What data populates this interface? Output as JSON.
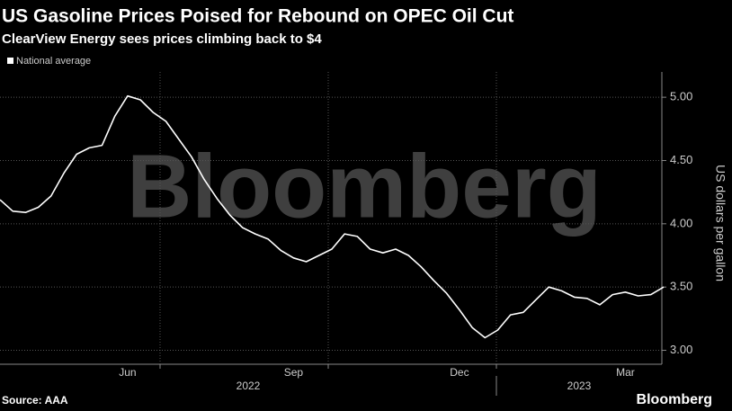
{
  "chart_data": {
    "type": "line",
    "title": "US Gasoline Prices Poised for Rebound on OPEC Oil Cut",
    "subtitle": "ClearView Energy sees prices climbing back to $4",
    "y_label": "US dollars per gallon",
    "source": "Source: AAA",
    "watermark": "Bloomberg",
    "brand": "Bloomberg",
    "year_labels": [
      "2022",
      "2023"
    ],
    "categories": [
      null,
      null,
      null,
      null,
      null,
      null,
      null,
      null,
      null,
      null,
      "Jun",
      null,
      null,
      null,
      null,
      null,
      null,
      null,
      null,
      null,
      null,
      null,
      null,
      "Sep",
      null,
      null,
      null,
      null,
      null,
      null,
      null,
      null,
      null,
      null,
      null,
      null,
      "Dec",
      null,
      null,
      null,
      null,
      null,
      null,
      null,
      null,
      null,
      null,
      null,
      null,
      "Mar",
      null,
      null,
      null
    ],
    "series": [
      {
        "name": "National average",
        "color": "#ffffff",
        "values": [
          4.19,
          4.1,
          4.09,
          4.13,
          4.22,
          4.4,
          4.55,
          4.6,
          4.62,
          4.85,
          5.01,
          4.98,
          4.88,
          4.81,
          4.67,
          4.53,
          4.35,
          4.2,
          4.07,
          3.97,
          3.92,
          3.88,
          3.79,
          3.73,
          3.7,
          3.75,
          3.8,
          3.92,
          3.9,
          3.8,
          3.77,
          3.8,
          3.75,
          3.66,
          3.55,
          3.45,
          3.32,
          3.18,
          3.1,
          3.16,
          3.28,
          3.3,
          3.4,
          3.5,
          3.47,
          3.42,
          3.41,
          3.36,
          3.44,
          3.46,
          3.43,
          3.44,
          3.5
        ]
      }
    ],
    "ylim": [
      2.89,
      5.2
    ],
    "yticks": [
      {
        "value": 3,
        "label": "3.00"
      },
      {
        "value": 3.5,
        "label": "3.50"
      },
      {
        "value": 4,
        "label": "4.00"
      },
      {
        "value": 4.5,
        "label": "4.50"
      },
      {
        "value": 5,
        "label": "5.00"
      }
    ],
    "grid": true
  }
}
